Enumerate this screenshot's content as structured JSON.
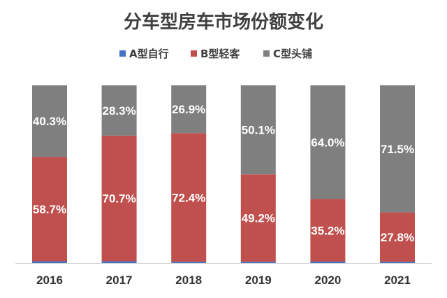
{
  "chart_data": {
    "type": "bar",
    "stacked": true,
    "title": "分车型房车市场份额变化",
    "xlabel": "",
    "ylabel": "",
    "ylim": [
      0,
      100
    ],
    "grid": false,
    "legend_position": "top",
    "categories": [
      "2016",
      "2017",
      "2018",
      "2019",
      "2020",
      "2021"
    ],
    "series": [
      {
        "name": "A型自行",
        "color": "#4472C4",
        "values": [
          1.0,
          1.0,
          0.7,
          0.7,
          0.8,
          0.7
        ],
        "labels": [
          "",
          "",
          "",
          "",
          "",
          ""
        ]
      },
      {
        "name": "B型轻客",
        "color": "#C0504D",
        "values": [
          58.7,
          70.7,
          72.4,
          49.2,
          35.2,
          27.8
        ],
        "labels": [
          "58.7%",
          "70.7%",
          "72.4%",
          "49.2%",
          "35.2%",
          "27.8%"
        ]
      },
      {
        "name": "C型头铺",
        "color": "#7F7F7F",
        "values": [
          40.3,
          28.3,
          26.9,
          50.1,
          64.0,
          71.5
        ],
        "labels": [
          "40.3%",
          "28.3%",
          "26.9%",
          "50.1%",
          "64.0%",
          "71.5%"
        ]
      }
    ]
  }
}
